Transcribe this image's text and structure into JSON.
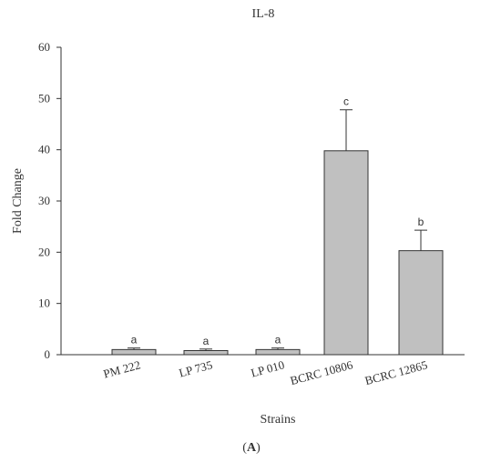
{
  "chart_data": {
    "type": "bar",
    "title": "IL-8",
    "xlabel": "Strains",
    "ylabel": "Fold Change",
    "ylim": [
      0,
      60
    ],
    "yticks": [
      "0",
      "10",
      "20",
      "30",
      "40",
      "50",
      "60"
    ],
    "categories": [
      "PM 222",
      "LP 735",
      "LP 010",
      "BCRC 10806",
      "BCRC 12865"
    ],
    "values": [
      1.0,
      0.8,
      1.0,
      39.8,
      20.3
    ],
    "errors": [
      0.3,
      0.3,
      0.3,
      8.0,
      4.0
    ],
    "significance": [
      "a",
      "a",
      "a",
      "c",
      "b"
    ],
    "bar_color": "#c0c0c0",
    "grid": false
  },
  "panel_label": {
    "open": "(",
    "letter": "A",
    "close": ")"
  }
}
